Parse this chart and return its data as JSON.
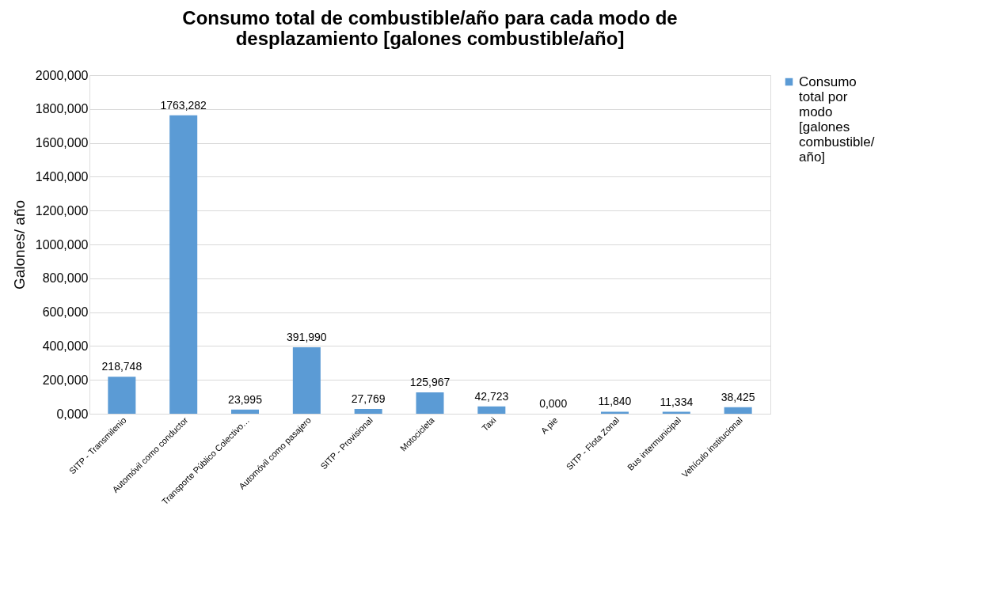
{
  "chart_data": {
    "type": "bar",
    "title": "Consumo total de combustible/año para cada modo de desplazamiento  [galones combustible/año]",
    "ylabel": "Galones/ año",
    "categories": [
      "SITP - Transmilenio",
      "Automóvil como conductor",
      "Transporte Público Colectivo…",
      "Automóvil como pasajero",
      "SITP - Provisional",
      "Motocicleta",
      "Taxi",
      "A pie",
      "SITP - Flota Zonal",
      "Bus intermunicipal",
      "Vehículo institucional"
    ],
    "series": [
      {
        "name": "Consumo total por modo [galones combustible/año]",
        "color": "#5b9bd5",
        "values": [
          218.748,
          1763.282,
          23.995,
          391.99,
          27.769,
          125.967,
          42.723,
          0,
          11.84,
          11.334,
          38.425
        ]
      }
    ],
    "value_labels": [
      "218,748",
      "1763,282",
      "23,995",
      "391,990",
      "27,769",
      "125,967",
      "42,723",
      "0,000",
      "11,840",
      "11,334",
      "38,425"
    ],
    "ylim": [
      0,
      2000
    ],
    "yticks": [
      {
        "value": 0,
        "label": "0,000"
      },
      {
        "value": 200,
        "label": "200,000"
      },
      {
        "value": 400,
        "label": "400,000"
      },
      {
        "value": 600,
        "label": "600,000"
      },
      {
        "value": 800,
        "label": "800,000"
      },
      {
        "value": 1000,
        "label": "1000,000"
      },
      {
        "value": 1200,
        "label": "1200,000"
      },
      {
        "value": 1400,
        "label": "1400,000"
      },
      {
        "value": 1600,
        "label": "1600,000"
      },
      {
        "value": 1800,
        "label": "1800,000"
      },
      {
        "value": 2000,
        "label": "2000,000"
      }
    ],
    "grid": "y",
    "legend": "right"
  }
}
